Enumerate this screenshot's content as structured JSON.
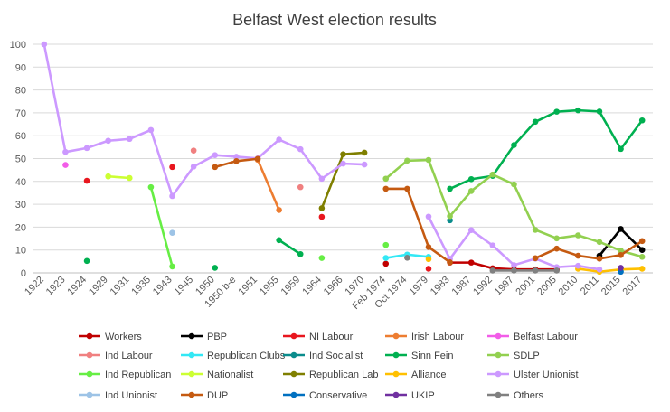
{
  "chart_data": {
    "type": "line",
    "title": "Belfast West election results",
    "xlabel": "",
    "ylabel": "",
    "ylim": [
      0,
      100
    ],
    "yticks": [
      0,
      10,
      20,
      30,
      40,
      50,
      60,
      70,
      80,
      90,
      100
    ],
    "grid": true,
    "legend_position": "bottom",
    "categories": [
      "1922",
      "1923",
      "1924",
      "1929",
      "1931",
      "1935",
      "1943",
      "1945",
      "1950",
      "1950 b-e",
      "1951",
      "1955",
      "1959",
      "1964",
      "1966",
      "1970",
      "Feb 1974",
      "Oct 1974",
      "1979",
      "1983",
      "1987",
      "1992",
      "1997",
      "2001",
      "2005",
      "2010",
      "2011",
      "2015",
      "2017"
    ],
    "series": [
      {
        "name": "Workers",
        "color": "#C00000",
        "values": [
          null,
          null,
          null,
          null,
          null,
          null,
          null,
          null,
          null,
          null,
          null,
          null,
          null,
          null,
          null,
          null,
          4,
          null,
          null,
          4.5,
          4.5,
          2,
          1.5,
          1.5,
          1.5,
          null,
          null,
          null,
          null
        ]
      },
      {
        "name": "PBP",
        "color": "#000000",
        "values": [
          null,
          null,
          null,
          null,
          null,
          null,
          null,
          null,
          null,
          null,
          null,
          null,
          null,
          null,
          null,
          null,
          null,
          null,
          null,
          null,
          null,
          null,
          null,
          null,
          null,
          null,
          7.5,
          19.2,
          10
        ]
      },
      {
        "name": "NI Labour",
        "color": "#E8161E",
        "values": [
          null,
          null,
          40.3,
          null,
          null,
          null,
          46.3,
          null,
          null,
          null,
          null,
          null,
          null,
          24.5,
          null,
          null,
          null,
          null,
          1.8,
          null,
          null,
          null,
          null,
          null,
          null,
          null,
          null,
          null,
          null
        ]
      },
      {
        "name": "Irish Labour",
        "color": "#ED7D31",
        "values": [
          null,
          null,
          null,
          null,
          null,
          null,
          null,
          null,
          null,
          null,
          49.5,
          27.5,
          null,
          null,
          null,
          null,
          null,
          null,
          null,
          null,
          null,
          null,
          null,
          null,
          null,
          null,
          null,
          null,
          null
        ]
      },
      {
        "name": "Belfast Labour",
        "color": "#F25CE8",
        "values": [
          null,
          47.2,
          null,
          null,
          null,
          null,
          null,
          null,
          null,
          null,
          null,
          null,
          null,
          null,
          null,
          null,
          null,
          null,
          null,
          null,
          null,
          null,
          null,
          null,
          null,
          null,
          null,
          null,
          null
        ]
      },
      {
        "name": "Ind Labour",
        "color": "#F08080",
        "values": [
          null,
          null,
          null,
          null,
          null,
          null,
          null,
          53.5,
          null,
          null,
          null,
          null,
          37.5,
          null,
          null,
          null,
          null,
          null,
          null,
          null,
          null,
          null,
          null,
          null,
          null,
          null,
          null,
          null,
          null
        ]
      },
      {
        "name": "Republican Clubs",
        "color": "#33E8F5",
        "values": [
          null,
          null,
          null,
          null,
          null,
          null,
          null,
          null,
          null,
          null,
          null,
          null,
          null,
          null,
          null,
          null,
          6.5,
          8,
          7,
          null,
          null,
          null,
          null,
          null,
          null,
          null,
          null,
          null,
          null
        ]
      },
      {
        "name": "Ind Socialist",
        "color": "#0A8C8C",
        "values": [
          null,
          null,
          null,
          null,
          null,
          null,
          null,
          null,
          null,
          null,
          null,
          null,
          null,
          null,
          null,
          null,
          null,
          null,
          null,
          23,
          null,
          null,
          null,
          null,
          null,
          null,
          null,
          null,
          null
        ]
      },
      {
        "name": "Sinn Fein",
        "color": "#00B050",
        "values": [
          null,
          null,
          5.2,
          null,
          null,
          null,
          null,
          null,
          2.2,
          null,
          null,
          14.3,
          8.2,
          null,
          null,
          null,
          null,
          null,
          null,
          36.8,
          41,
          42.4,
          55.9,
          66.1,
          70.5,
          71.1,
          70.6,
          54.2,
          66.7
        ]
      },
      {
        "name": "SDLP",
        "color": "#92D050",
        "values": [
          null,
          null,
          null,
          null,
          null,
          null,
          null,
          null,
          null,
          null,
          null,
          null,
          null,
          null,
          null,
          null,
          41.2,
          49.1,
          49.4,
          24.8,
          35.8,
          43,
          38.7,
          18.8,
          15.1,
          16.4,
          13.5,
          9.7,
          7
        ]
      },
      {
        "name": "Ind Republican",
        "color": "#66EE44",
        "values": [
          null,
          null,
          null,
          null,
          null,
          37.5,
          2.8,
          null,
          null,
          null,
          null,
          null,
          null,
          6.5,
          null,
          null,
          12.2,
          null,
          null,
          null,
          null,
          null,
          null,
          null,
          null,
          null,
          null,
          null,
          null
        ]
      },
      {
        "name": "Nationalist",
        "color": "#CCFF33",
        "values": [
          null,
          null,
          null,
          42.2,
          41.5,
          null,
          null,
          null,
          null,
          null,
          null,
          null,
          null,
          null,
          null,
          null,
          null,
          null,
          null,
          null,
          null,
          null,
          null,
          null,
          null,
          null,
          null,
          null,
          null
        ]
      },
      {
        "name": "Republican Lab",
        "color": "#7F7F00",
        "values": [
          null,
          null,
          null,
          null,
          null,
          null,
          null,
          null,
          null,
          null,
          null,
          null,
          null,
          28.3,
          51.9,
          52.6,
          null,
          null,
          null,
          null,
          null,
          null,
          null,
          null,
          null,
          null,
          null,
          null,
          null
        ]
      },
      {
        "name": "Alliance",
        "color": "#FFC000",
        "values": [
          null,
          null,
          null,
          null,
          null,
          null,
          null,
          null,
          null,
          null,
          null,
          null,
          null,
          null,
          null,
          null,
          null,
          null,
          6,
          null,
          null,
          null,
          null,
          null,
          null,
          1.8,
          0.5,
          1.5,
          1.8
        ]
      },
      {
        "name": "Ulster Unionist",
        "color": "#CC99FF",
        "values": [
          100,
          52.9,
          54.6,
          57.8,
          58.6,
          62.5,
          33.6,
          46.5,
          51.5,
          50.8,
          50.1,
          58.3,
          54.1,
          41.2,
          47.8,
          47.4,
          null,
          null,
          24.6,
          6.1,
          18.7,
          12,
          3.4,
          6.2,
          2.5,
          3.1,
          1.5,
          null,
          null
        ]
      },
      {
        "name": "Ind Unionist",
        "color": "#9DC3E6",
        "values": [
          null,
          null,
          null,
          null,
          null,
          null,
          17.5,
          null,
          null,
          null,
          null,
          null,
          null,
          null,
          null,
          null,
          null,
          null,
          null,
          null,
          null,
          null,
          null,
          null,
          null,
          null,
          null,
          null,
          null
        ]
      },
      {
        "name": "DUP",
        "color": "#C55A11",
        "values": [
          null,
          null,
          null,
          null,
          null,
          null,
          null,
          null,
          46.3,
          48.9,
          49.9,
          null,
          null,
          null,
          null,
          null,
          36.8,
          36.8,
          11.3,
          4.6,
          null,
          null,
          null,
          6.4,
          10.6,
          7.5,
          6.2,
          7.8,
          13.9
        ]
      },
      {
        "name": "Conservative",
        "color": "#0070C0",
        "values": [
          null,
          null,
          null,
          null,
          null,
          null,
          null,
          null,
          null,
          null,
          null,
          null,
          null,
          null,
          null,
          null,
          null,
          null,
          null,
          null,
          null,
          null,
          null,
          null,
          null,
          null,
          null,
          0.5,
          null
        ]
      },
      {
        "name": "UKIP",
        "color": "#7030A0",
        "values": [
          null,
          null,
          null,
          null,
          null,
          null,
          null,
          null,
          null,
          null,
          null,
          null,
          null,
          null,
          null,
          null,
          null,
          null,
          null,
          null,
          null,
          null,
          null,
          null,
          null,
          null,
          null,
          2.2,
          null
        ]
      },
      {
        "name": "Others",
        "color": "#808080",
        "values": [
          null,
          null,
          null,
          null,
          null,
          null,
          null,
          null,
          null,
          null,
          null,
          null,
          null,
          null,
          null,
          null,
          null,
          6.6,
          null,
          null,
          null,
          1,
          1,
          1,
          1,
          null,
          null,
          null,
          null
        ]
      }
    ]
  }
}
